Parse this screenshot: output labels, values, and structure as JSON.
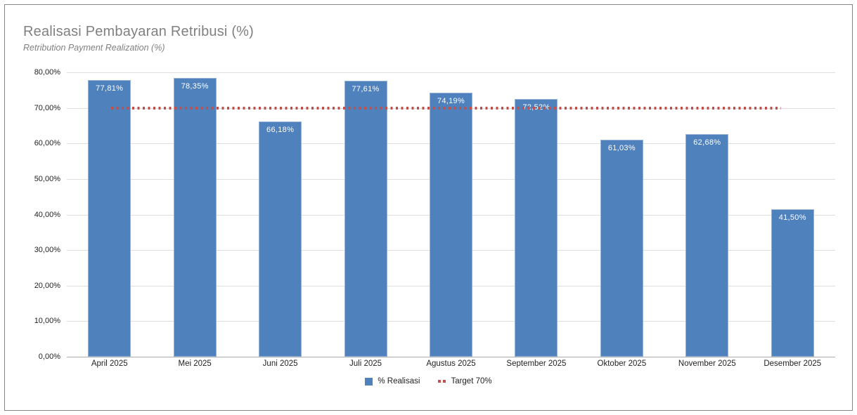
{
  "header": {
    "title": "Realisasi Pembayaran Retribusi (%)",
    "subtitle": "Retribution Payment Realization (%)"
  },
  "chart_data": {
    "type": "bar",
    "title": "Realisasi Pembayaran Retribusi (%)",
    "subtitle": "Retribution Payment Realization (%)",
    "categories": [
      "April 2025",
      "Mei 2025",
      "Juni 2025",
      "Juli 2025",
      "Agustus 2025",
      "September 2025",
      "Oktober 2025",
      "November 2025",
      "Desember 2025"
    ],
    "series": [
      {
        "name": "% Realisasi",
        "type": "bar",
        "values": [
          77.81,
          78.35,
          66.18,
          77.61,
          74.19,
          72.52,
          61.03,
          62.68,
          41.5
        ]
      },
      {
        "name": "Target 70%",
        "type": "line",
        "value": 70
      }
    ],
    "value_labels": [
      "77,81%",
      "78,35%",
      "66,18%",
      "77,61%",
      "74,19%",
      "72,52%",
      "61,03%",
      "62,68%",
      "41,50%"
    ],
    "y_ticks": [
      "0,00%",
      "10,00%",
      "20,00%",
      "30,00%",
      "40,00%",
      "50,00%",
      "60,00%",
      "70,00%",
      "80,00%"
    ],
    "ylim": [
      0,
      80
    ],
    "grid": true,
    "legend_position": "bottom",
    "colors": {
      "bar_fill": "#4F81BD",
      "bar_border": "#95B3D7",
      "bar_label_text": "#FFFFFF",
      "target_line": "#C0504D",
      "gridline": "#DEDEDE",
      "title_text": "#808080",
      "axis_text": "#1F1F1F"
    }
  },
  "legend": {
    "items": [
      {
        "label": "% Realisasi",
        "marker": "bar-swatch"
      },
      {
        "label": "Target 70%",
        "marker": "dotted-line"
      }
    ]
  }
}
